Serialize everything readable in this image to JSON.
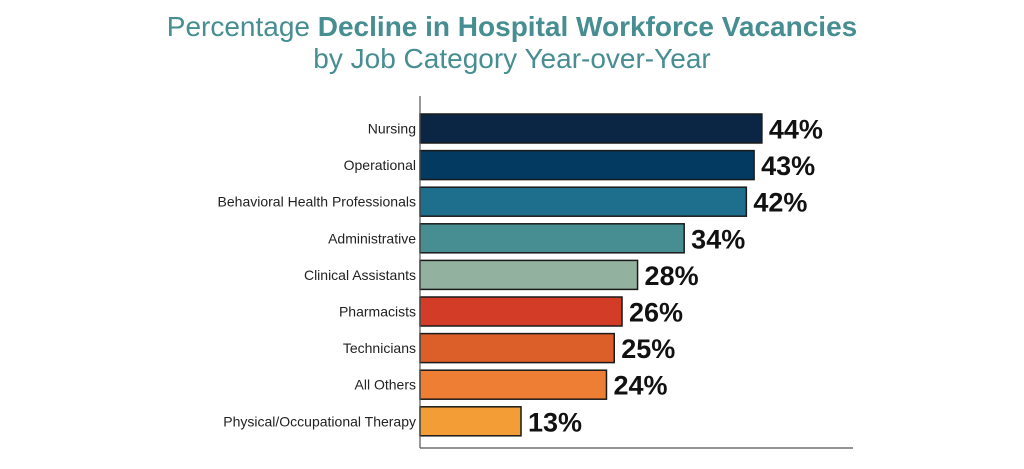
{
  "chart_data": {
    "type": "bar",
    "orientation": "horizontal",
    "title_prefix": "Percentage ",
    "title_bold": "Decline in Hospital Workforce Vacancies",
    "subtitle": "by Job Category Year-over-Year",
    "categories": [
      "Nursing",
      "Operational",
      "Behavioral Health Professionals",
      "Administrative",
      "Clinical Assistants",
      "Pharmacists",
      "Technicians",
      "All Others",
      "Physical/Occupational Therapy"
    ],
    "values": [
      44,
      43,
      42,
      34,
      28,
      26,
      25,
      24,
      13
    ],
    "data_labels": [
      "44%",
      "43%",
      "42%",
      "34%",
      "28%",
      "26%",
      "25%",
      "24%",
      "13%"
    ],
    "colors": [
      "#0b2545",
      "#033a62",
      "#1e6f8e",
      "#478e92",
      "#93b19f",
      "#d33c27",
      "#dc5e28",
      "#ee7e33",
      "#f29d35"
    ],
    "xlim": [
      0,
      55
    ],
    "grid": false,
    "legend": "none"
  }
}
